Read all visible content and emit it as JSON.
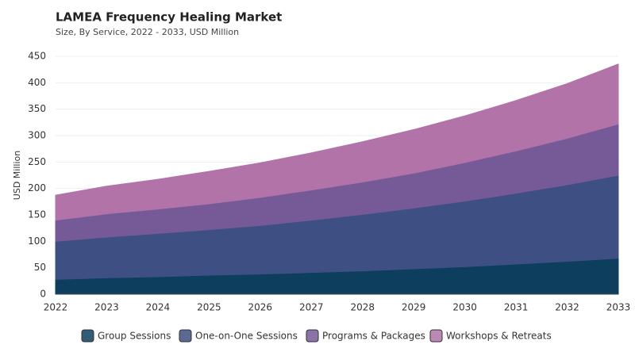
{
  "chart_data": {
    "type": "stacked-area",
    "title": "LAMEA Frequency Healing Market",
    "subtitle": "Size, By Service, 2022 - 2033, USD Million",
    "y_label": "USD Million",
    "categories": [
      "2022",
      "2023",
      "2024",
      "2025",
      "2026",
      "2027",
      "2028",
      "2029",
      "2030",
      "2031",
      "2032",
      "2033"
    ],
    "series": [
      {
        "name": "Group Sessions",
        "color": "#0e3e5e",
        "values": [
          28,
          31,
          33,
          36,
          38,
          41,
          44,
          48,
          52,
          57,
          62,
          68
        ]
      },
      {
        "name": "One-on-One Sessions",
        "color": "#3e5083",
        "values": [
          72,
          77,
          82,
          86,
          92,
          99,
          107,
          115,
          124,
          134,
          145,
          157
        ]
      },
      {
        "name": "Programs & Packages",
        "color": "#765a98",
        "values": [
          40,
          44,
          46,
          49,
          53,
          57,
          61,
          66,
          73,
          80,
          88,
          97
        ]
      },
      {
        "name": "Workshops & Retreats",
        "color": "#b273a9",
        "values": [
          47,
          52,
          56,
          61,
          65,
          70,
          76,
          82,
          88,
          95,
          103,
          113
        ]
      }
    ],
    "ylim": [
      0,
      450
    ],
    "yticks": [
      0,
      50,
      100,
      150,
      200,
      250,
      300,
      350,
      400,
      450
    ],
    "grid": true
  }
}
